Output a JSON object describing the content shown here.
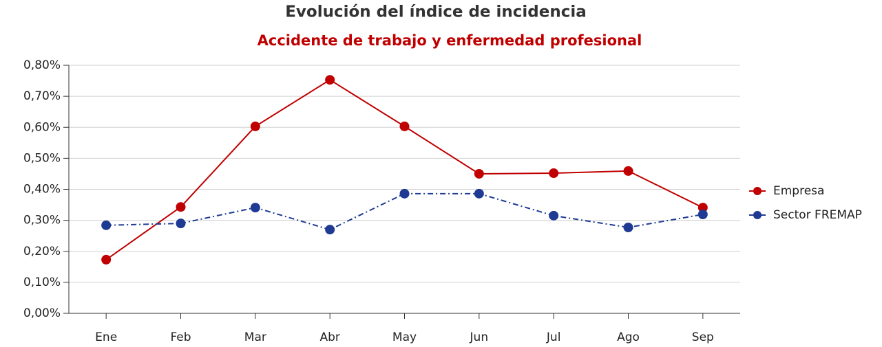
{
  "chart_data": {
    "type": "line",
    "title": "Evolución del índice de incidencia",
    "subtitle": "Accidente de trabajo y enfermedad profesional",
    "categories": [
      "Ene",
      "Feb",
      "Mar",
      "Abr",
      "May",
      "Jun",
      "Jul",
      "Ago",
      "Sep"
    ],
    "series": [
      {
        "name": "Empresa",
        "color": "#c00000",
        "dash": "solid",
        "values": [
          0.173,
          0.343,
          0.603,
          0.753,
          0.603,
          0.45,
          0.452,
          0.459,
          0.341
        ]
      },
      {
        "name": "Sector FREMAP",
        "color": "#1f3a93",
        "dash": "dashdot",
        "values": [
          0.284,
          0.29,
          0.341,
          0.27,
          0.386,
          0.386,
          0.315,
          0.277,
          0.319
        ]
      }
    ],
    "ylim": [
      0,
      0.8
    ],
    "yticks": [
      {
        "value": 0,
        "label": "0,00%"
      },
      {
        "value": 0.1,
        "label": "0,10%"
      },
      {
        "value": 0.2,
        "label": "0,20%"
      },
      {
        "value": 0.3,
        "label": "0,30%"
      },
      {
        "value": 0.4,
        "label": "0,40%"
      },
      {
        "value": 0.5,
        "label": "0,50%"
      },
      {
        "value": 0.6,
        "label": "0,60%"
      },
      {
        "value": 0.7,
        "label": "0,70%"
      },
      {
        "value": 0.8,
        "label": "0,80%"
      }
    ],
    "grid": true,
    "legend": "right"
  }
}
